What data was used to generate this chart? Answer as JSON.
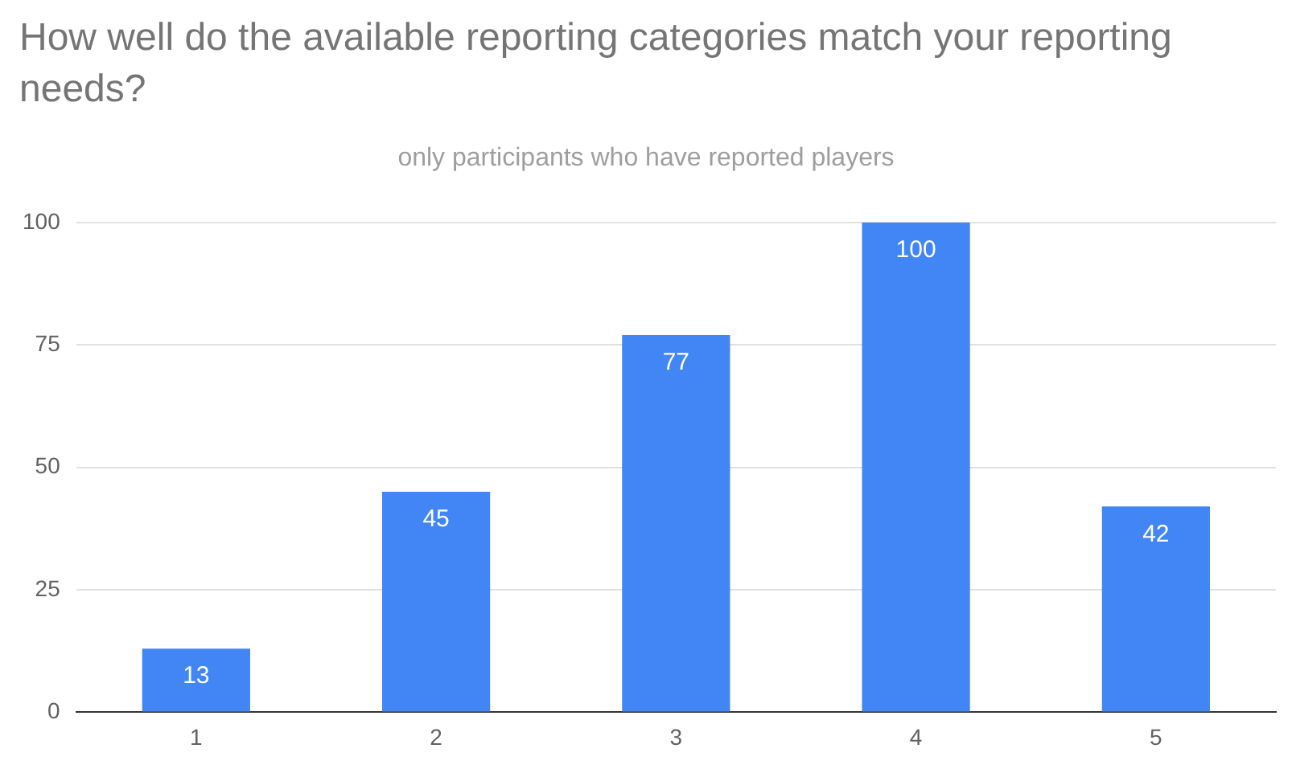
{
  "chart_data": {
    "type": "bar",
    "title": "How well do the available reporting categories match your reporting needs?",
    "subtitle": "only participants who have reported players",
    "categories": [
      "1",
      "2",
      "3",
      "4",
      "5"
    ],
    "values": [
      13,
      45,
      77,
      100,
      42
    ],
    "color": "#4285f4",
    "ylim": [
      0,
      100
    ],
    "yticks": [
      0,
      25,
      50,
      75,
      100
    ],
    "grid": "y",
    "data_labels": true,
    "legend": false
  }
}
